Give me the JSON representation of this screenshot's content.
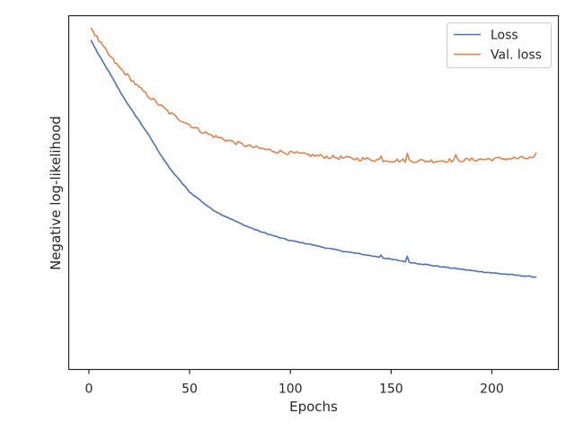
{
  "chart_data": {
    "type": "line",
    "xlabel": "Epochs",
    "ylabel": "Negative log-likelihood",
    "x_ticks": [
      0,
      50,
      100,
      150,
      200
    ],
    "xlim": [
      -10,
      233
    ],
    "ylim": [
      0,
      1
    ],
    "y_tick_labels_shown": false,
    "grid": false,
    "legend_position": "top-right",
    "series": [
      {
        "name": "Loss",
        "color": "#4c72b0",
        "keypoints": [
          [
            1,
            0.962
          ],
          [
            5,
            0.915
          ],
          [
            10,
            0.863
          ],
          [
            15,
            0.808
          ],
          [
            20,
            0.757
          ],
          [
            25,
            0.712
          ],
          [
            30,
            0.665
          ],
          [
            35,
            0.614
          ],
          [
            40,
            0.566
          ],
          [
            45,
            0.529
          ],
          [
            50,
            0.492
          ],
          [
            55,
            0.468
          ],
          [
            60,
            0.443
          ],
          [
            65,
            0.425
          ],
          [
            70,
            0.41
          ],
          [
            75,
            0.395
          ],
          [
            80,
            0.382
          ],
          [
            85,
            0.37
          ],
          [
            90,
            0.36
          ],
          [
            95,
            0.35
          ],
          [
            100,
            0.342
          ],
          [
            110,
            0.33
          ],
          [
            120,
            0.316
          ],
          [
            130,
            0.305
          ],
          [
            140,
            0.295
          ],
          [
            150,
            0.284
          ],
          [
            160,
            0.274
          ],
          [
            170,
            0.265
          ],
          [
            180,
            0.257
          ],
          [
            190,
            0.249
          ],
          [
            200,
            0.242
          ],
          [
            210,
            0.236
          ],
          [
            222,
            0.229
          ]
        ],
        "noise": 0.0015,
        "bumps": [
          [
            145,
            0.008
          ],
          [
            158,
            0.016
          ]
        ]
      },
      {
        "name": "Val. loss",
        "color": "#dd8452",
        "keypoints": [
          [
            1,
            1.0
          ],
          [
            5,
            0.96
          ],
          [
            10,
            0.915
          ],
          [
            15,
            0.878
          ],
          [
            20,
            0.847
          ],
          [
            25,
            0.814
          ],
          [
            30,
            0.787
          ],
          [
            35,
            0.762
          ],
          [
            40,
            0.737
          ],
          [
            45,
            0.718
          ],
          [
            50,
            0.7
          ],
          [
            55,
            0.683
          ],
          [
            60,
            0.669
          ],
          [
            65,
            0.659
          ],
          [
            70,
            0.65
          ],
          [
            75,
            0.641
          ],
          [
            80,
            0.633
          ],
          [
            85,
            0.627
          ],
          [
            90,
            0.621
          ],
          [
            100,
            0.613
          ],
          [
            110,
            0.606
          ],
          [
            120,
            0.6
          ],
          [
            130,
            0.596
          ],
          [
            140,
            0.593
          ],
          [
            150,
            0.59
          ],
          [
            160,
            0.589
          ],
          [
            170,
            0.588
          ],
          [
            180,
            0.59
          ],
          [
            190,
            0.592
          ],
          [
            200,
            0.594
          ],
          [
            210,
            0.596
          ],
          [
            222,
            0.597
          ]
        ],
        "noise": 0.006,
        "bumps": [
          [
            145,
            0.01
          ],
          [
            158,
            0.02
          ],
          [
            182,
            0.012
          ],
          [
            222,
            0.012
          ]
        ]
      }
    ]
  }
}
